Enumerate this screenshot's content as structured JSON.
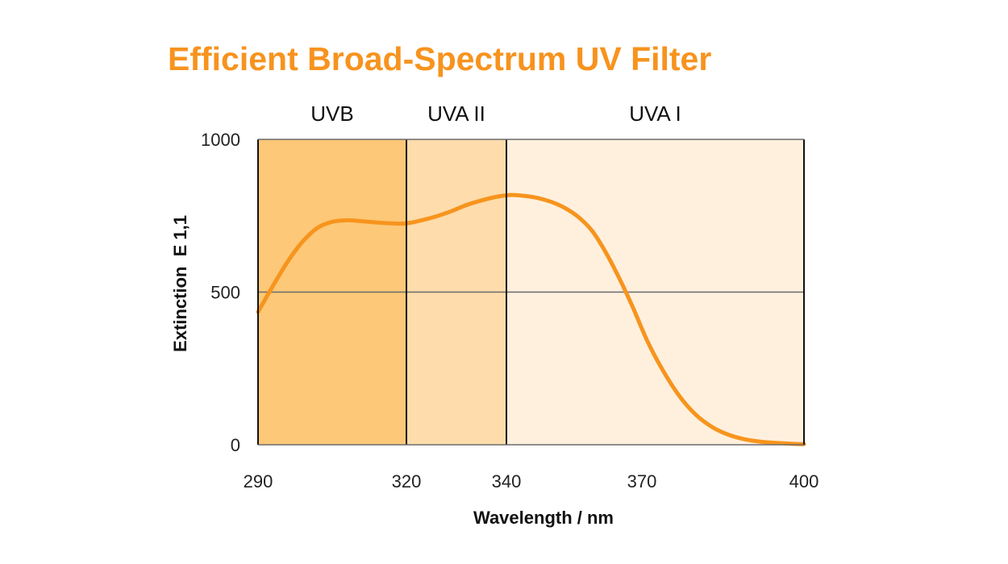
{
  "chart_data": {
    "type": "line",
    "title": "Efficient Broad-Spectrum UV Filter",
    "xlabel": "Wavelength / nm",
    "ylabel": "Extinction  E 1,1",
    "xlim": [
      290,
      400
    ],
    "ylim": [
      0,
      1000
    ],
    "x_ticks": [
      290,
      320,
      340,
      370,
      400
    ],
    "y_ticks": [
      0,
      500,
      1000
    ],
    "grid": {
      "horizontal_at": [
        500
      ]
    },
    "colors": {
      "title": "#f7931e",
      "line": "#f7941d",
      "uvb_fill": "#fdc878",
      "uva2_fill": "#fedcab",
      "uva1_fill": "#fff0de"
    },
    "bands": [
      {
        "name": "UVB",
        "from": 290,
        "to": 320
      },
      {
        "name": "UVA II",
        "from": 320,
        "to": 340
      },
      {
        "name": "UVA I",
        "from": 340,
        "to": 400
      }
    ],
    "series": [
      {
        "name": "Extinction",
        "x": [
          290,
          293,
          296,
          299,
          302,
          305,
          308,
          311,
          314,
          317,
          320,
          323,
          326,
          329,
          332,
          335,
          338,
          341,
          344,
          347,
          350,
          353,
          356,
          359,
          362,
          365,
          368,
          371,
          374,
          377,
          380,
          383,
          386,
          389,
          392,
          395,
          398,
          400
        ],
        "y": [
          435,
          520,
          600,
          665,
          710,
          730,
          735,
          732,
          728,
          725,
          725,
          735,
          748,
          765,
          785,
          800,
          812,
          818,
          815,
          808,
          795,
          775,
          745,
          700,
          630,
          545,
          450,
          340,
          240,
          158,
          98,
          58,
          33,
          18,
          10,
          6,
          3,
          2
        ]
      }
    ]
  }
}
